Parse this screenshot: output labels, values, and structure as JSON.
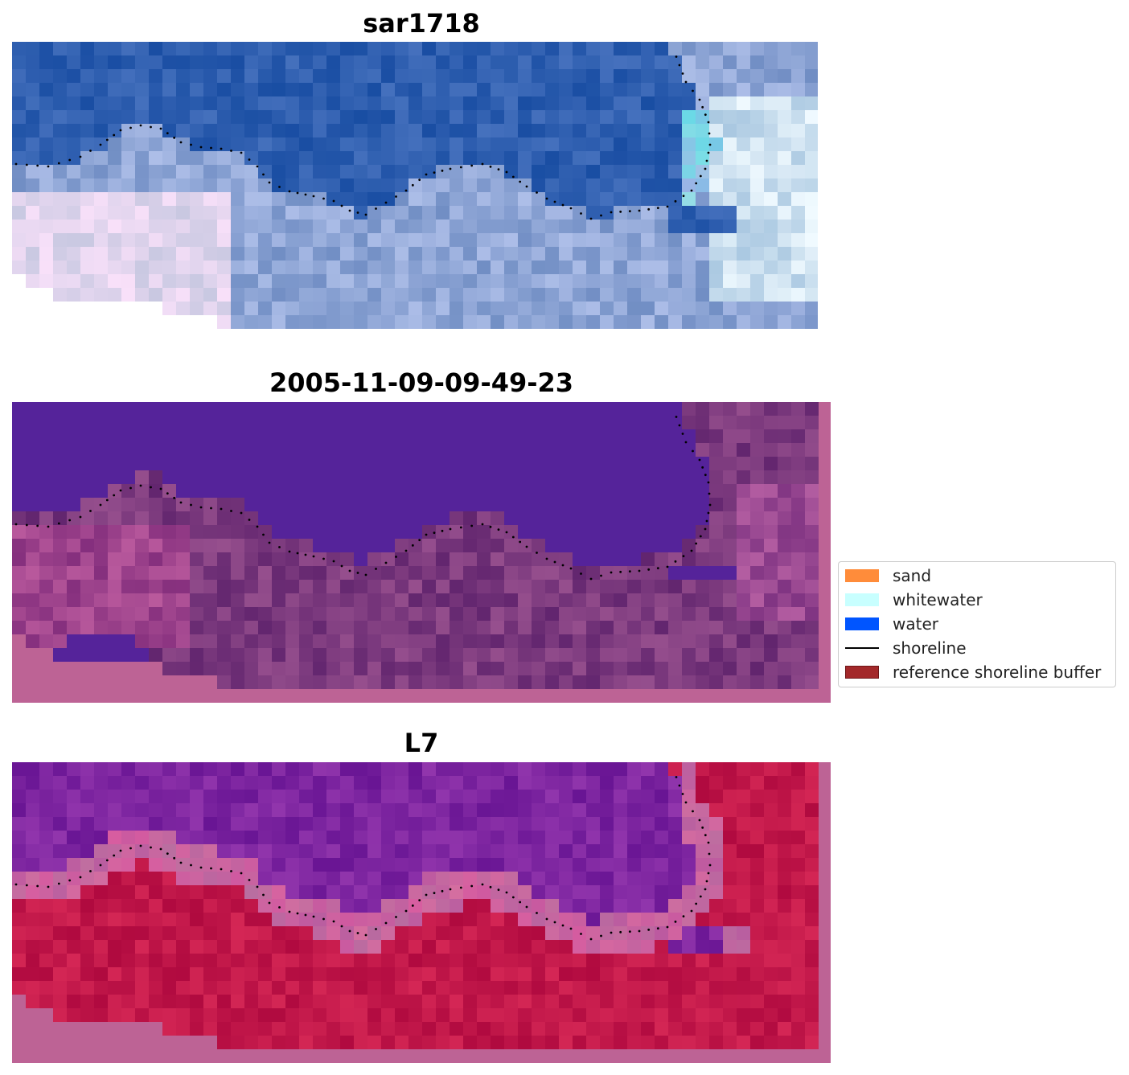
{
  "panels": [
    {
      "title": "sar1718",
      "kind": "rgb"
    },
    {
      "title": "2005-11-09-09-49-23",
      "kind": "classified"
    },
    {
      "title": "L7",
      "kind": "mndwi"
    }
  ],
  "legend": {
    "items": [
      {
        "label": "sand",
        "color": "#ff8c3a",
        "type": "patch"
      },
      {
        "label": "whitewater",
        "color": "#c8ffff",
        "type": "patch"
      },
      {
        "label": "water",
        "color": "#0055ff",
        "type": "patch"
      },
      {
        "label": "shoreline",
        "color": "#000000",
        "type": "line"
      },
      {
        "label": "reference shoreline buffer",
        "color": "#a3282a",
        "type": "patch-edge"
      }
    ]
  },
  "colors": {
    "ocean_rgb": "#2f5fb0",
    "land_rgb": "#8fa6d6",
    "classified_water": "#55239a",
    "classified_land": "#7c3a7e",
    "buffer_pink": "#bd6395",
    "mndwi_water": "#7d25a0",
    "mndwi_land": "#c2184a",
    "shoreline_dots": "#000000"
  }
}
